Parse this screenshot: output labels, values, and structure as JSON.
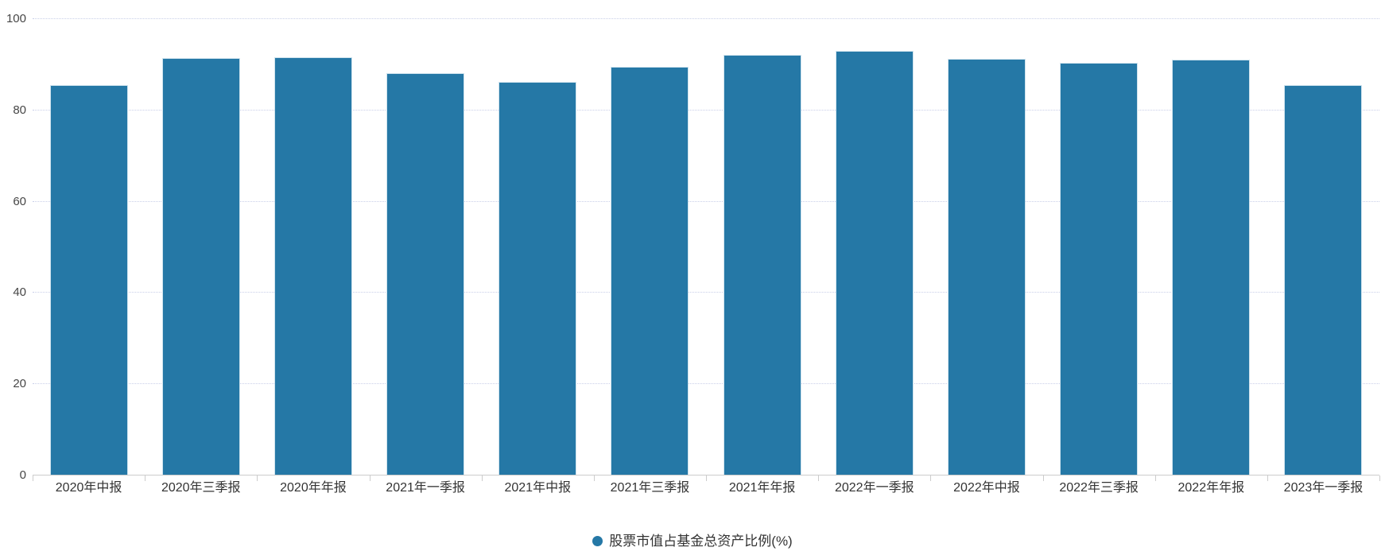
{
  "chart_data": {
    "type": "bar",
    "title": "",
    "xlabel": "",
    "ylabel": "",
    "categories": [
      "2020年中报",
      "2020年三季报",
      "2020年年报",
      "2021年一季报",
      "2021年中报",
      "2021年三季报",
      "2021年年报",
      "2022年一季报",
      "2022年中报",
      "2022年三季报",
      "2022年年报",
      "2023年一季报"
    ],
    "series": [
      {
        "name": "股票市值占基金总资产比例(%)",
        "values": [
          85.4,
          91.3,
          91.5,
          88.0,
          86.1,
          89.4,
          92.0,
          92.9,
          91.1,
          90.2,
          91.0,
          85.4
        ]
      }
    ],
    "ylim": [
      0,
      100
    ],
    "yticks": [
      0,
      20,
      40,
      60,
      80,
      100
    ],
    "ytick_labels": [
      "0",
      "20",
      "40",
      "60",
      "80",
      "100"
    ],
    "grid": "horizontal-dotted",
    "legend_position": "bottom-center"
  },
  "colors": {
    "bar_fill": "#2578a6",
    "bar_edge": "#cfe3ee",
    "gridline": "#c9cfe8",
    "axis_line": "#cccccc",
    "axis_text": "#464646",
    "category_text": "#333333",
    "legend_text": "#333333",
    "background": "#ffffff"
  }
}
